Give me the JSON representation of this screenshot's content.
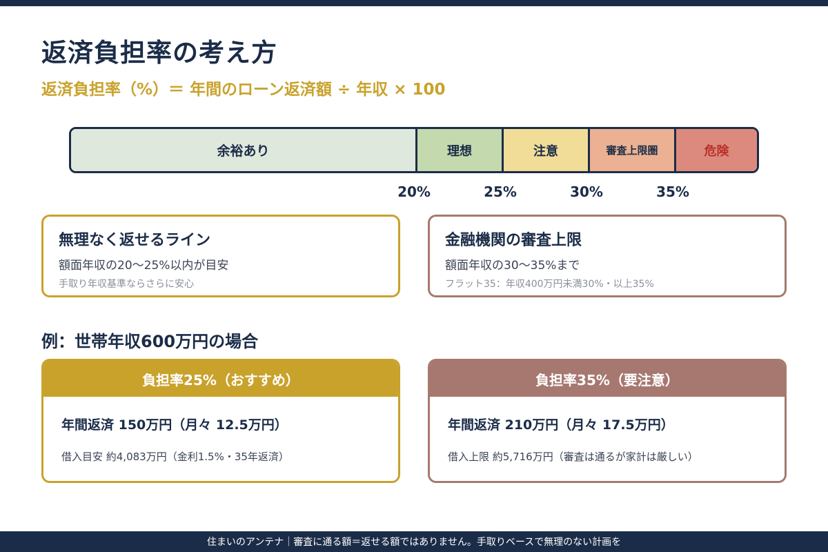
{
  "title": "返済負担率の考え方",
  "formula": "返済負担率（%）＝ 年間のローン返済額 ÷ 年収 × 100",
  "gauge": {
    "segments": [
      {
        "label": "余裕あり",
        "color": "#dfe8dc"
      },
      {
        "label": "理想",
        "color": "#c4d9ad"
      },
      {
        "label": "注意",
        "color": "#f1dd98"
      },
      {
        "label": "審査上限圏",
        "color": "#ebb192"
      },
      {
        "label": "危険",
        "color": "#dd8a7e"
      }
    ],
    "ticks": [
      "20%",
      "25%",
      "30%",
      "35%"
    ]
  },
  "info_cards": [
    {
      "heading": "無理なく返せるライン",
      "line": "額面年収の20〜25%以内が目安",
      "note": "手取り年収基準ならさらに安心",
      "accent": "#c9a22c"
    },
    {
      "heading": "金融機関の審査上限",
      "line": "額面年収の30〜35%まで",
      "note": "フラット35：年収400万円未満30%・以上35%",
      "accent": "#a77870"
    }
  ],
  "example_title": "例：世帯年収600万円の場合",
  "examples": [
    {
      "header": "負担率25%（おすすめ）",
      "main": "年間返済 150万円（月々 12.5万円）",
      "note": "借入目安 約4,083万円（金利1.5%・35年返済）",
      "accent": "#c9a22c"
    },
    {
      "header": "負担率35%（要注意）",
      "main": "年間返済 210万円（月々 17.5万円）",
      "note": "借入上限 約5,716万円（審査は通るが家計は厳しい）",
      "accent": "#a77870"
    }
  ],
  "footer": "住まいのアンテナ｜審査に通る額＝返せる額ではありません。手取りベースで無理のない計画を"
}
